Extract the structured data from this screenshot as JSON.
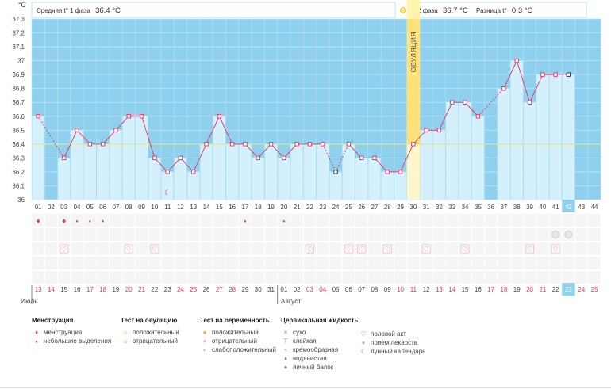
{
  "header": {
    "y_unit": "°C",
    "phase1_label": "Средняя t° 1 фаза",
    "phase1_value": "36.4 °C",
    "phase2_label": "2 фаза",
    "phase2_value": "36.7 °C",
    "diff_label": "Разница t°",
    "diff_value": "0.3 °C"
  },
  "ovulation_label": "ОВУЛЯЦИЯ",
  "chart_data": {
    "type": "line",
    "ylim": [
      36.0,
      37.3
    ],
    "yticks": [
      "36",
      "36.1",
      "36.2",
      "36.3",
      "36.4",
      "36.5",
      "36.6",
      "36.7",
      "36.8",
      "36.9",
      "37",
      "37.1",
      "37.2",
      "37.3"
    ],
    "cycle_days": [
      "01",
      "02",
      "03",
      "04",
      "05",
      "06",
      "07",
      "08",
      "09",
      "10",
      "11",
      "12",
      "13",
      "14",
      "15",
      "16",
      "17",
      "18",
      "19",
      "20",
      "21",
      "22",
      "23",
      "24",
      "25",
      "26",
      "27",
      "28",
      "29",
      "30",
      "31",
      "32",
      "33",
      "34",
      "35",
      "36",
      "37",
      "38",
      "39",
      "40",
      "41",
      "42",
      "43",
      "44"
    ],
    "dates": [
      "13",
      "14",
      "15",
      "16",
      "17",
      "18",
      "19",
      "20",
      "21",
      "22",
      "23",
      "24",
      "25",
      "26",
      "27",
      "28",
      "29",
      "30",
      "31",
      "01",
      "02",
      "03",
      "04",
      "05",
      "06",
      "07",
      "08",
      "09",
      "10",
      "11",
      "12",
      "13",
      "14",
      "15",
      "16",
      "17",
      "18",
      "19",
      "20",
      "21",
      "22",
      "23",
      "24",
      "25"
    ],
    "months": [
      {
        "label": "Июль",
        "start_index": 0
      },
      {
        "label": "Август",
        "start_index": 19
      }
    ],
    "temperatures": [
      36.6,
      null,
      36.3,
      36.5,
      36.4,
      36.4,
      36.5,
      36.6,
      36.6,
      36.3,
      36.2,
      36.3,
      36.2,
      36.4,
      36.6,
      36.4,
      36.4,
      36.3,
      36.4,
      36.3,
      36.4,
      36.4,
      36.4,
      36.2,
      36.4,
      36.3,
      36.3,
      36.2,
      36.2,
      36.4,
      36.5,
      36.5,
      36.7,
      36.7,
      36.6,
      null,
      36.8,
      37.0,
      36.7,
      36.9,
      36.9,
      36.9,
      null,
      null
    ],
    "excluded_points": [
      1,
      23,
      41
    ],
    "coverline": 36.4,
    "ovulation_day_index": 29,
    "current_day_index": 41,
    "phase2_start_index": 30,
    "period_days": [
      0,
      2
    ],
    "spotting_days": [
      3,
      4,
      5,
      16,
      19
    ],
    "intercourse_days": [
      2,
      7,
      9,
      21,
      24,
      25,
      27,
      30,
      33,
      38,
      40
    ],
    "pregnancy_negative_days": [
      40,
      41
    ],
    "lunar_day_index": 10
  },
  "legend": {
    "menstruation": {
      "title": "Менструация",
      "items": [
        "менструация",
        "небольшие выделения"
      ]
    },
    "ovulation_test": {
      "title": "Тест на овуляцию",
      "items": [
        "положительный",
        "отрицательный"
      ]
    },
    "pregnancy_test": {
      "title": "Тест на беременность",
      "items": [
        "положительный",
        "отрицательный",
        "слабоположительный"
      ]
    },
    "cervical": {
      "title": "Цервикальная жидкость",
      "items": [
        "сухо",
        "клейкая",
        "кремообразная",
        "водянистая",
        "яичный белок"
      ]
    },
    "other": {
      "items": [
        "половой акт",
        "прием лекарств",
        "лунный календарь"
      ]
    }
  }
}
